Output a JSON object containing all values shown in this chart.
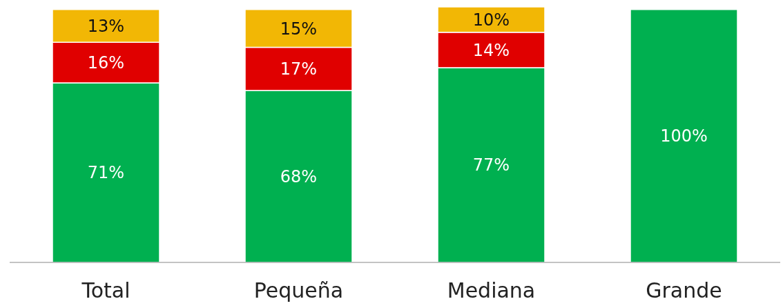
{
  "chart_data": {
    "type": "bar",
    "stacked": true,
    "categories": [
      "Total",
      "Pequeña",
      "Mediana",
      "Grande"
    ],
    "series": [
      {
        "color": "#00b050",
        "values": [
          71,
          68,
          77,
          100
        ],
        "value_labels": [
          "71%",
          "68%",
          "77%",
          "100%"
        ]
      },
      {
        "color": "#e00000",
        "values": [
          16,
          17,
          14,
          null
        ],
        "value_labels": [
          "16%",
          "17%",
          "14%",
          null
        ]
      },
      {
        "color": "#f2b705",
        "values": [
          13,
          15,
          10,
          null
        ],
        "value_labels": [
          "13%",
          "15%",
          "10%",
          null
        ]
      }
    ]
  }
}
